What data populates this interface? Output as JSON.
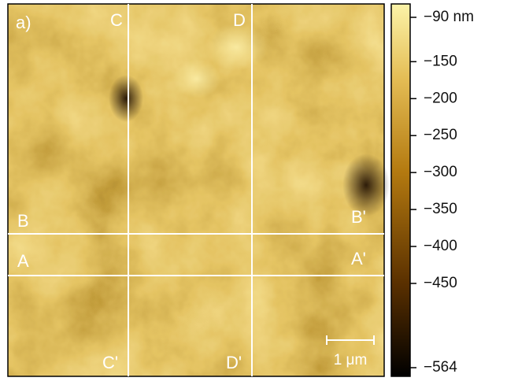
{
  "panel_label": "a)",
  "line_labels": {
    "c_top": "C",
    "d_top": "D",
    "b_left": "B",
    "b_right": "B'",
    "a_left": "A",
    "a_right": "A'",
    "c_bottom": "C'",
    "d_bottom": "D'"
  },
  "scale_bar": "1 μm",
  "colorbar": {
    "range": [
      -564,
      -90
    ],
    "ticks": [
      {
        "value": -90,
        "label": "−90 nm"
      },
      {
        "value": -150,
        "label": "−150"
      },
      {
        "value": -200,
        "label": "−200"
      },
      {
        "value": -250,
        "label": "−250"
      },
      {
        "value": -300,
        "label": "−300"
      },
      {
        "value": -350,
        "label": "−350"
      },
      {
        "value": -400,
        "label": "−400"
      },
      {
        "value": -450,
        "label": "−450"
      },
      {
        "value": -564,
        "label": "−564"
      }
    ]
  }
}
